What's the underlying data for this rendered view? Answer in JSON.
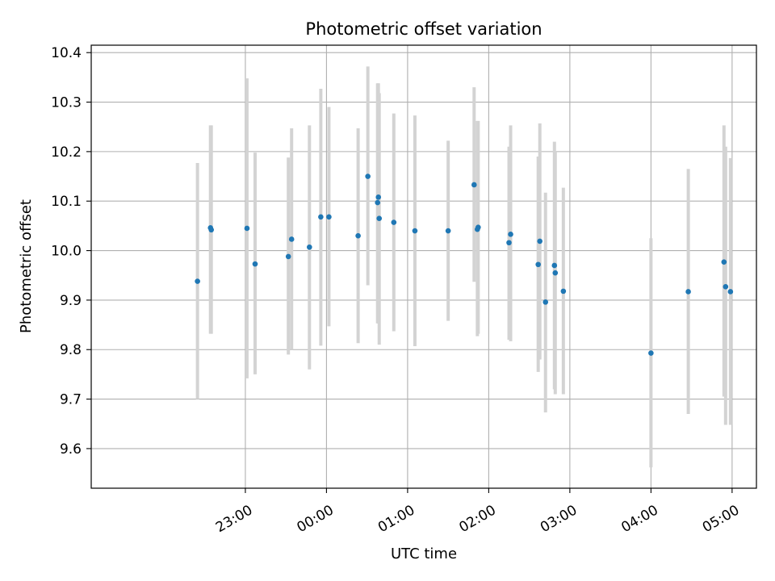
{
  "chart_data": {
    "type": "scatter",
    "title": "Photometric offset variation",
    "xlabel": "UTC time",
    "ylabel": "Photometric offset",
    "x_unit": "hours relative to 00:00 UTC",
    "xlim": [
      -2.9,
      5.3
    ],
    "ylim": [
      9.52,
      10.415
    ],
    "grid": true,
    "x_ticks": [
      {
        "value": -1,
        "label": "23:00"
      },
      {
        "value": 0,
        "label": "00:00"
      },
      {
        "value": 1,
        "label": "01:00"
      },
      {
        "value": 2,
        "label": "02:00"
      },
      {
        "value": 3,
        "label": "03:00"
      },
      {
        "value": 4,
        "label": "04:00"
      },
      {
        "value": 5,
        "label": "05:00"
      }
    ],
    "y_ticks": [
      {
        "value": 9.6,
        "label": "9.6"
      },
      {
        "value": 9.7,
        "label": "9.7"
      },
      {
        "value": 9.8,
        "label": "9.8"
      },
      {
        "value": 9.9,
        "label": "9.9"
      },
      {
        "value": 10.0,
        "label": "10.0"
      },
      {
        "value": 10.1,
        "label": "10.1"
      },
      {
        "value": 10.2,
        "label": "10.2"
      },
      {
        "value": 10.3,
        "label": "10.3"
      },
      {
        "value": 10.4,
        "label": "10.4"
      }
    ],
    "marker_color": "#1f77b4",
    "errorbar_color": "#d3d3d3",
    "points": [
      {
        "x": -1.59,
        "y": 9.938,
        "lo": 9.7,
        "hi": 10.177
      },
      {
        "x": -1.43,
        "y": 10.046,
        "lo": 9.832,
        "hi": 10.253
      },
      {
        "x": -1.42,
        "y": 10.042,
        "lo": 9.832,
        "hi": 10.253
      },
      {
        "x": -0.98,
        "y": 10.045,
        "lo": 9.742,
        "hi": 10.348
      },
      {
        "x": -0.88,
        "y": 9.973,
        "lo": 9.75,
        "hi": 10.198
      },
      {
        "x": -0.47,
        "y": 9.988,
        "lo": 9.79,
        "hi": 10.188
      },
      {
        "x": -0.43,
        "y": 10.023,
        "lo": 9.8,
        "hi": 10.247
      },
      {
        "x": -0.21,
        "y": 10.007,
        "lo": 9.76,
        "hi": 10.253
      },
      {
        "x": -0.07,
        "y": 10.068,
        "lo": 9.808,
        "hi": 10.327
      },
      {
        "x": 0.03,
        "y": 10.068,
        "lo": 9.847,
        "hi": 10.29
      },
      {
        "x": 0.39,
        "y": 10.03,
        "lo": 9.813,
        "hi": 10.247
      },
      {
        "x": 0.51,
        "y": 10.15,
        "lo": 9.93,
        "hi": 10.372
      },
      {
        "x": 0.63,
        "y": 10.097,
        "lo": 9.853,
        "hi": 10.338
      },
      {
        "x": 0.64,
        "y": 10.108,
        "lo": 9.853,
        "hi": 10.338
      },
      {
        "x": 0.65,
        "y": 10.065,
        "lo": 9.81,
        "hi": 10.318
      },
      {
        "x": 0.83,
        "y": 10.057,
        "lo": 9.837,
        "hi": 10.277
      },
      {
        "x": 1.09,
        "y": 10.04,
        "lo": 9.807,
        "hi": 10.273
      },
      {
        "x": 1.5,
        "y": 10.04,
        "lo": 9.858,
        "hi": 10.222
      },
      {
        "x": 1.82,
        "y": 10.133,
        "lo": 9.937,
        "hi": 10.33
      },
      {
        "x": 1.86,
        "y": 10.043,
        "lo": 9.827,
        "hi": 10.262
      },
      {
        "x": 1.87,
        "y": 10.047,
        "lo": 9.832,
        "hi": 10.262
      },
      {
        "x": 2.25,
        "y": 10.016,
        "lo": 9.82,
        "hi": 10.21
      },
      {
        "x": 2.27,
        "y": 10.033,
        "lo": 9.817,
        "hi": 10.253
      },
      {
        "x": 2.61,
        "y": 9.972,
        "lo": 9.755,
        "hi": 10.19
      },
      {
        "x": 2.63,
        "y": 10.019,
        "lo": 9.78,
        "hi": 10.257
      },
      {
        "x": 2.7,
        "y": 9.896,
        "lo": 9.673,
        "hi": 10.117
      },
      {
        "x": 2.81,
        "y": 9.97,
        "lo": 9.72,
        "hi": 10.22
      },
      {
        "x": 2.82,
        "y": 9.955,
        "lo": 9.71,
        "hi": 10.2
      },
      {
        "x": 2.92,
        "y": 9.918,
        "lo": 9.71,
        "hi": 10.127
      },
      {
        "x": 4.0,
        "y": 9.793,
        "lo": 9.562,
        "hi": 10.025
      },
      {
        "x": 4.46,
        "y": 9.917,
        "lo": 9.67,
        "hi": 10.165
      },
      {
        "x": 4.9,
        "y": 9.977,
        "lo": 9.705,
        "hi": 10.253
      },
      {
        "x": 4.92,
        "y": 9.927,
        "lo": 9.648,
        "hi": 10.21
      },
      {
        "x": 4.98,
        "y": 9.917,
        "lo": 9.648,
        "hi": 10.187
      }
    ]
  }
}
